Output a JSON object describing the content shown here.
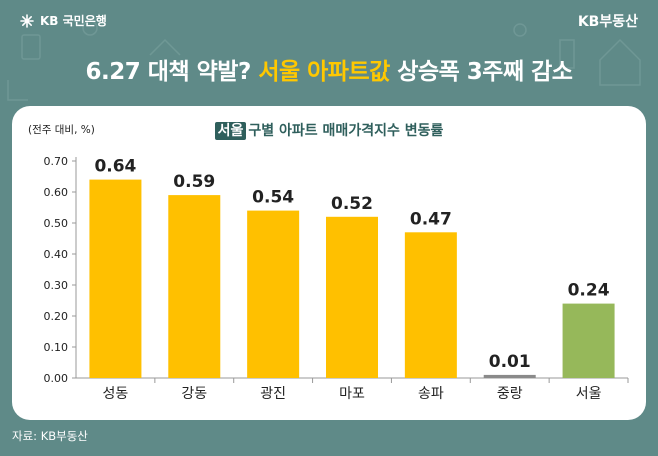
{
  "brand": {
    "bank": "KB 국민은행",
    "realty": "KB부동산"
  },
  "headline": {
    "part1": "6.27 대책 약발?",
    "part2": "서울 아파트값",
    "part3": "상승폭 3주째 감소"
  },
  "subtitle": {
    "tag": "서울",
    "text": "구별 아파트 매매가격지수 변동률"
  },
  "source": "자료: KB부동산",
  "colors": {
    "bar": "#ffc000",
    "bar_city": "#96b85a",
    "bar_small": "#8a8a8a",
    "headline_accent": "#ffc800",
    "background": "#5f8a88"
  },
  "chart_data": {
    "type": "bar",
    "unit_label": "(전주 대비, %)",
    "categories": [
      "성동",
      "강동",
      "광진",
      "마포",
      "송파",
      "중랑",
      "서울"
    ],
    "values": [
      0.64,
      0.59,
      0.54,
      0.52,
      0.47,
      0.01,
      0.24
    ],
    "value_labels": [
      "0.64",
      "0.59",
      "0.54",
      "0.52",
      "0.47",
      "0.01",
      "0.24"
    ],
    "yticks": [
      "0.00",
      "0.10",
      "0.20",
      "0.30",
      "0.40",
      "0.50",
      "0.60",
      "0.70"
    ],
    "ylim": [
      0,
      0.7
    ],
    "grid": false,
    "legend": "none"
  }
}
